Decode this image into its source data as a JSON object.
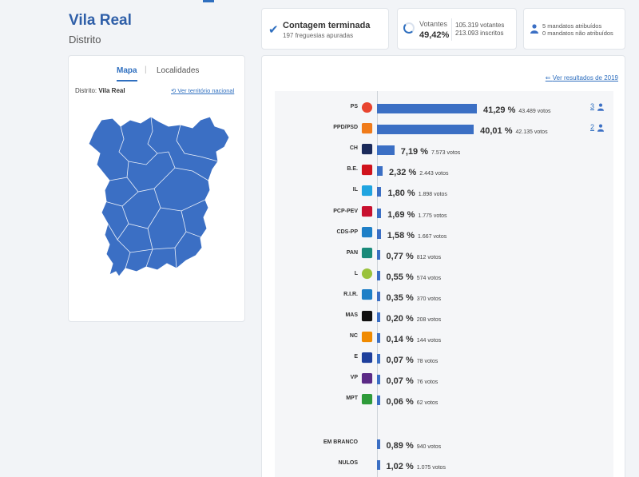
{
  "header": {
    "title": "Vila Real",
    "subtitle": "Distrito"
  },
  "summary": {
    "count_title": "Contagem terminada",
    "count_sub": "197 freguesias apuradas",
    "votantes_label": "Votantes",
    "votantes_pct": "49,42%",
    "votantes_count": "105.319 votantes",
    "inscritos_count": "213.093 inscritos",
    "mandates_assigned": "5 mandatos atribuídos",
    "mandates_unassigned": "0 mandatos não atribuídos"
  },
  "map": {
    "tab_map": "Mapa",
    "tab_localities": "Localidades",
    "district_label": "Distrito:",
    "district_value": "Vila Real",
    "national_link": "Ver território nacional",
    "fill_color": "#3b6fc4"
  },
  "results": {
    "previous_link": "Ver resultados de 2019",
    "bar_color": "#3b6fc4",
    "parties": [
      {
        "name": "PS",
        "pct": "41,29 %",
        "votes": "43.489 votos",
        "share": 41.29,
        "seats": "3",
        "logo": "ps-logo-icon",
        "color": "#e8442f"
      },
      {
        "name": "PPD/PSD",
        "pct": "40,01 %",
        "votes": "42.135 votos",
        "share": 40.01,
        "seats": "2",
        "logo": "psd-logo-icon",
        "color": "#f07b1a"
      },
      {
        "name": "CH",
        "pct": "7,19 %",
        "votes": "7.573 votos",
        "share": 7.19,
        "logo": "chega-logo-icon",
        "color": "#1b2a5a"
      },
      {
        "name": "B.E.",
        "pct": "2,32 %",
        "votes": "2.443 votos",
        "share": 2.32,
        "logo": "be-logo-icon",
        "color": "#d0121b"
      },
      {
        "name": "IL",
        "pct": "1,80 %",
        "votes": "1.898 votos",
        "share": 1.8,
        "logo": "il-logo-icon",
        "color": "#1fa4e0"
      },
      {
        "name": "PCP-PEV",
        "pct": "1,69 %",
        "votes": "1.775 votos",
        "share": 1.69,
        "logo": "cdu-logo-icon",
        "color": "#c8102e"
      },
      {
        "name": "CDS-PP",
        "pct": "1,58 %",
        "votes": "1.667 votos",
        "share": 1.58,
        "logo": "cds-logo-icon",
        "color": "#1e7fc7"
      },
      {
        "name": "PAN",
        "pct": "0,77 %",
        "votes": "812 votos",
        "share": 0.77,
        "logo": "pan-logo-icon",
        "color": "#1a8a7a"
      },
      {
        "name": "L",
        "pct": "0,55 %",
        "votes": "574 votos",
        "share": 0.55,
        "logo": "livre-logo-icon",
        "color": "#9ac23c"
      },
      {
        "name": "R.I.R.",
        "pct": "0,35 %",
        "votes": "370 votos",
        "share": 0.35,
        "logo": "rir-logo-icon",
        "color": "#1e7fc7"
      },
      {
        "name": "MAS",
        "pct": "0,20 %",
        "votes": "208 votos",
        "share": 0.2,
        "logo": "mas-logo-icon",
        "color": "#111111"
      },
      {
        "name": "NC",
        "pct": "0,14 %",
        "votes": "144 votos",
        "share": 0.14,
        "logo": "nc-logo-icon",
        "color": "#f08a00"
      },
      {
        "name": "E",
        "pct": "0,07 %",
        "votes": "78 votos",
        "share": 0.07,
        "logo": "ergue-logo-icon",
        "color": "#1e3f9c"
      },
      {
        "name": "VP",
        "pct": "0,07 %",
        "votes": "76 votos",
        "share": 0.07,
        "logo": "volt-logo-icon",
        "color": "#5b2a86"
      },
      {
        "name": "MPT",
        "pct": "0,06 %",
        "votes": "62 votos",
        "share": 0.06,
        "logo": "mpt-logo-icon",
        "color": "#2e9b3a"
      }
    ],
    "others": [
      {
        "name": "EM BRANCO",
        "pct": "0,89 %",
        "votes": "940 votos",
        "share": 0.89
      },
      {
        "name": "NULOS",
        "pct": "1,02 %",
        "votes": "1.075 votos",
        "share": 1.02
      }
    ]
  }
}
